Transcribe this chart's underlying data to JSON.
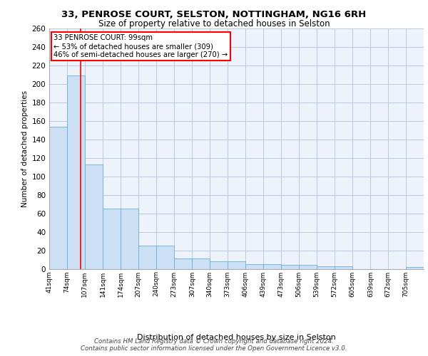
{
  "title1": "33, PENROSE COURT, SELSTON, NOTTINGHAM, NG16 6RH",
  "title2": "Size of property relative to detached houses in Selston",
  "xlabel": "Distribution of detached houses by size in Selston",
  "ylabel": "Number of detached properties",
  "bar_edges": [
    41,
    74,
    107,
    141,
    174,
    207,
    240,
    273,
    307,
    340,
    373,
    406,
    439,
    473,
    506,
    539,
    572,
    605,
    639,
    672,
    705
  ],
  "bar_heights": [
    154,
    209,
    113,
    65,
    65,
    25,
    25,
    11,
    11,
    8,
    8,
    5,
    5,
    4,
    4,
    3,
    3,
    0,
    0,
    0,
    2
  ],
  "bar_color": "#cce0f5",
  "bar_edge_color": "#6baed6",
  "bg_color": "#eef3fb",
  "grid_color": "#b0c4de",
  "red_line_x": 99,
  "annotation_title": "33 PENROSE COURT: 99sqm",
  "annotation_line1": "← 53% of detached houses are smaller (309)",
  "annotation_line2": "46% of semi-detached houses are larger (270) →",
  "annotation_box_color": "white",
  "annotation_border_color": "red",
  "footer": "Contains HM Land Registry data © Crown copyright and database right 2024.\nContains public sector information licensed under the Open Government Licence v3.0.",
  "tick_labels": [
    "41sqm",
    "74sqm",
    "107sqm",
    "141sqm",
    "174sqm",
    "207sqm",
    "240sqm",
    "273sqm",
    "307sqm",
    "340sqm",
    "373sqm",
    "406sqm",
    "439sqm",
    "473sqm",
    "506sqm",
    "539sqm",
    "572sqm",
    "605sqm",
    "639sqm",
    "672sqm",
    "705sqm"
  ],
  "ylim": [
    0,
    260
  ],
  "yticks": [
    0,
    20,
    40,
    60,
    80,
    100,
    120,
    140,
    160,
    180,
    200,
    220,
    240,
    260
  ]
}
